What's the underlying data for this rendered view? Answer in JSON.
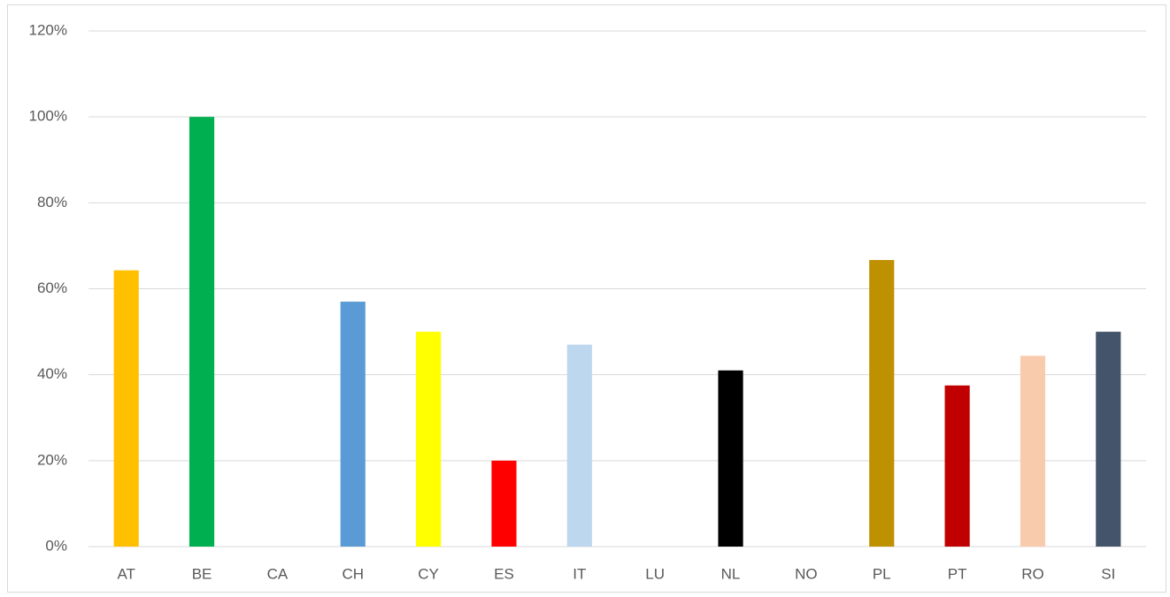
{
  "chart_data": {
    "type": "bar",
    "categories": [
      "AT",
      "BE",
      "CA",
      "CH",
      "CY",
      "ES",
      "IT",
      "LU",
      "NL",
      "NO",
      "PL",
      "PT",
      "RO",
      "SI"
    ],
    "values": [
      64.3,
      100,
      0,
      57,
      50,
      20,
      47,
      0,
      41,
      0,
      66.7,
      37.5,
      44.4,
      50
    ],
    "colors": [
      "#ffc000",
      "#00b050",
      "#7f7f7f",
      "#5b9bd5",
      "#ffff00",
      "#ff0000",
      "#bdd7ee",
      "#7f7f7f",
      "#000000",
      "#7f7f7f",
      "#bf9000",
      "#c00000",
      "#f8cbad",
      "#44546a"
    ],
    "ylim": [
      0,
      120
    ],
    "yticks": [
      {
        "value": 0,
        "label": "0%"
      },
      {
        "value": 20,
        "label": "20%"
      },
      {
        "value": 40,
        "label": "40%"
      },
      {
        "value": 60,
        "label": "60%"
      },
      {
        "value": 80,
        "label": "80%"
      },
      {
        "value": 100,
        "label": "100%"
      },
      {
        "value": 120,
        "label": "120%"
      }
    ],
    "grid": true
  }
}
